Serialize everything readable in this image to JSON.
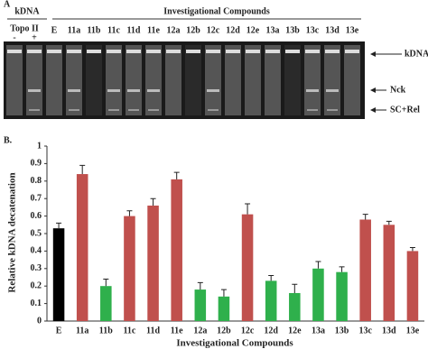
{
  "panel_a": {
    "label": "A",
    "group_left": "kDNA",
    "group_right": "Investigational Compounds",
    "topo_label": "Topo II",
    "topo_lanes": [
      "-",
      "+"
    ],
    "lanes": [
      "E",
      "11a",
      "11b",
      "11c",
      "11d",
      "11e",
      "12a",
      "12b",
      "12c",
      "12d",
      "12e",
      "13a",
      "13b",
      "13c",
      "13d",
      "13e"
    ],
    "band_labels": [
      "kDNA",
      "Nck",
      "SC+Rel"
    ]
  },
  "chart_data": {
    "type": "bar",
    "panel_label": "B.",
    "y_label": "Relative kDNA decatenation",
    "x_label": "Investigational Compounds",
    "categories": [
      "E",
      "11a",
      "11b",
      "11c",
      "11d",
      "11e",
      "12a",
      "12b",
      "12c",
      "12d",
      "12e",
      "13a",
      "13b",
      "13c",
      "13d",
      "13e"
    ],
    "values": [
      0.53,
      0.84,
      0.2,
      0.6,
      0.66,
      0.81,
      0.18,
      0.14,
      0.61,
      0.23,
      0.16,
      0.3,
      0.28,
      0.58,
      0.55,
      0.4
    ],
    "errors": [
      0.03,
      0.05,
      0.04,
      0.03,
      0.04,
      0.04,
      0.04,
      0.04,
      0.06,
      0.03,
      0.05,
      0.04,
      0.03,
      0.03,
      0.02,
      0.02
    ],
    "colors": [
      "#000000",
      "#c0504d",
      "#2fb04c",
      "#c0504d",
      "#c0504d",
      "#c0504d",
      "#2fb04c",
      "#2fb04c",
      "#c0504d",
      "#2fb04c",
      "#2fb04c",
      "#2fb04c",
      "#2fb04c",
      "#c0504d",
      "#c0504d",
      "#c0504d"
    ],
    "ylim": [
      0,
      1
    ],
    "yticks": [
      0,
      0.1,
      0.2,
      0.3,
      0.4,
      0.5,
      0.6,
      0.7,
      0.8,
      0.9,
      1
    ],
    "grid": false
  }
}
